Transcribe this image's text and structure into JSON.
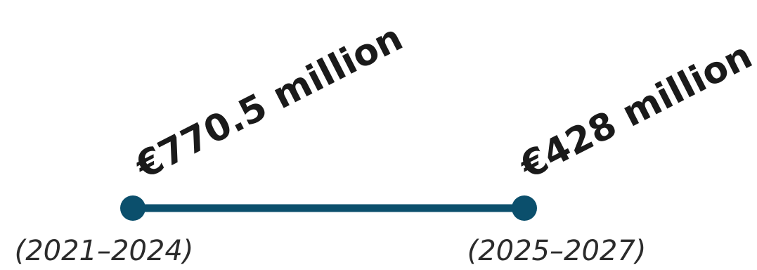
{
  "chart_data": {
    "type": "line",
    "title": "",
    "xlabel": "",
    "ylabel": "",
    "points": [
      {
        "period": "(2021–2024)",
        "value_label": "€770.5 million",
        "value": 770.5
      },
      {
        "period": "(2025–2027)",
        "value_label": "€428 million",
        "value": 428
      }
    ],
    "unit": "€ million",
    "grid": false,
    "legend": "none",
    "colors": {
      "line": "#0b4f6c",
      "marker": "#0b4f6c",
      "value_text": "#1a1a1a",
      "period_text": "#2b2b2b"
    }
  }
}
